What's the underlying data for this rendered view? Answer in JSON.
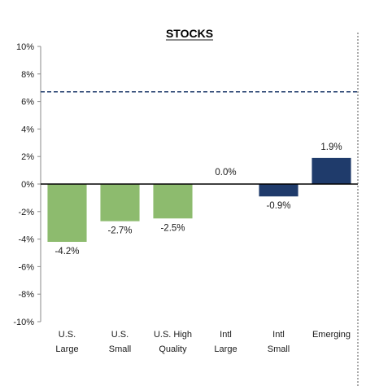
{
  "chart_data": {
    "type": "bar",
    "title": "STOCKS",
    "categories": [
      [
        "U.S.",
        "Large"
      ],
      [
        "U.S.",
        "Small"
      ],
      [
        "U.S. High",
        "Quality"
      ],
      [
        "Intl",
        "Large"
      ],
      [
        "Intl",
        "Small"
      ],
      [
        "Emerging"
      ]
    ],
    "values": [
      -4.2,
      -2.7,
      -2.5,
      0.0,
      -0.9,
      1.9
    ],
    "data_labels": [
      "-4.2%",
      "-2.7%",
      "-2.5%",
      "0.0%",
      "-0.9%",
      "1.9%"
    ],
    "bar_colors": [
      "#8dbb6e",
      "#8dbb6e",
      "#8dbb6e",
      "#8dbb6e",
      "#1f3b6b",
      "#1f3b6b"
    ],
    "ylim": [
      -10,
      10
    ],
    "yticks": [
      -10,
      -8,
      -6,
      -4,
      -2,
      0,
      2,
      4,
      6,
      8,
      10
    ],
    "ytick_labels": [
      "-10%",
      "-8%",
      "-6%",
      "-4%",
      "-2%",
      "0%",
      "2%",
      "4%",
      "6%",
      "8%",
      "10%"
    ],
    "reference_line": {
      "value": 6.7,
      "style": "dashed",
      "color": "#1f3b6b"
    },
    "xlabel": "",
    "ylabel": "",
    "grid": false,
    "legend": "none"
  }
}
